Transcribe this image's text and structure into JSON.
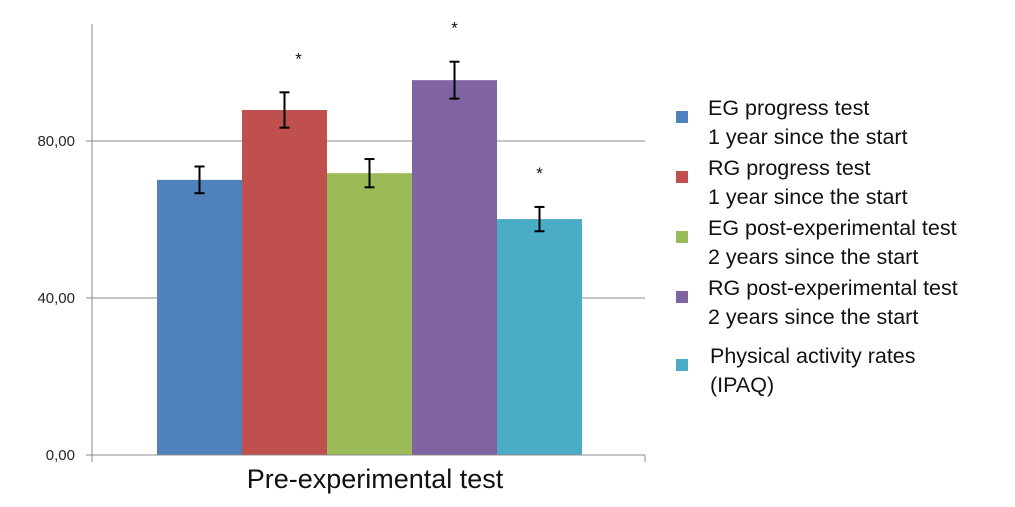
{
  "chart_data": {
    "type": "bar",
    "title": "",
    "xlabel": "",
    "ylabel": "",
    "categories": [
      "Pre-experimental test"
    ],
    "ylim": [
      0,
      110
    ],
    "yticks": [
      0,
      40,
      80
    ],
    "ytick_labels": [
      "0,00",
      "40,00",
      "80,00"
    ],
    "grid": true,
    "legend_position": "right",
    "series": [
      {
        "name": "EG progress test\n1 year since the start",
        "values": [
          70.1
        ],
        "error": [
          3.4
        ],
        "significant": false,
        "color": "#4F81BD"
      },
      {
        "name": "RG progress test\n1 year since the start",
        "values": [
          87.9
        ],
        "error": [
          4.5
        ],
        "significant": true,
        "color": "#C0504D"
      },
      {
        "name": "EG post-experimental test\n2 years since the start",
        "values": [
          71.8
        ],
        "error": [
          3.6
        ],
        "significant": false,
        "color": "#9BBB59"
      },
      {
        "name": "RG post-experimental test\n2 years since the start",
        "values": [
          95.5
        ],
        "error": [
          4.7
        ],
        "significant": true,
        "color": "#8064A2"
      },
      {
        "name": "Physical activity rates\n(IPAQ)",
        "values": [
          60.1
        ],
        "error": [
          3.1
        ],
        "significant": true,
        "color": "#4BACC6"
      }
    ],
    "annotations": {
      "significance_marker": "*"
    }
  }
}
